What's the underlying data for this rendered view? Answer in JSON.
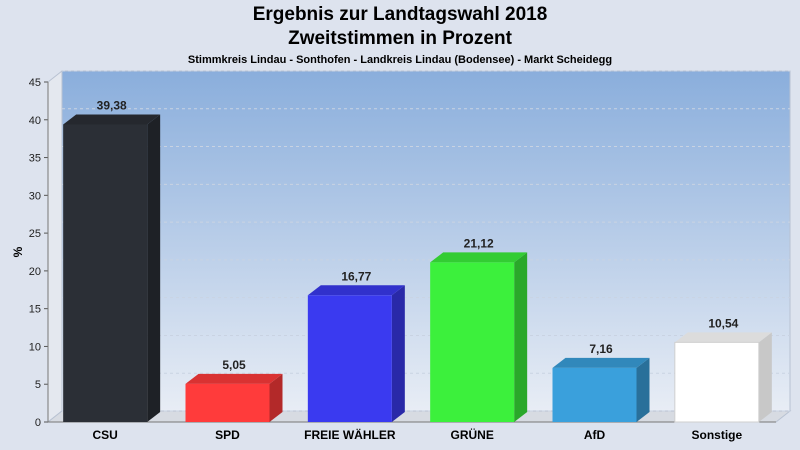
{
  "header": {
    "title": "Ergebnis zur Landtagswahl 2018",
    "subtitle": "Zweitstimmen in Prozent",
    "region": "Stimmkreis Lindau - Sonthofen - Landkreis Lindau (Bodensee) - Markt Scheidegg"
  },
  "chart_data": {
    "type": "bar",
    "title": "Ergebnis zur Landtagswahl 2018",
    "subtitle": "Zweitstimmen in Prozent",
    "xlabel": "",
    "ylabel": "%",
    "ylim": [
      0,
      45
    ],
    "yticks": [
      0,
      5,
      10,
      15,
      20,
      25,
      30,
      35,
      40,
      45
    ],
    "grid": true,
    "legend": "none",
    "categories": [
      "CSU",
      "SPD",
      "FREIE WÄHLER",
      "GRÜNE",
      "AfD",
      "Sonstige"
    ],
    "values": [
      39.38,
      5.05,
      16.77,
      21.12,
      7.16,
      10.54
    ],
    "value_labels": [
      "39,38",
      "5,05",
      "16,77",
      "21,12",
      "7,16",
      "10,54"
    ],
    "colors": [
      "#2b2f36",
      "#ff3b3b",
      "#3a3af0",
      "#3cf03c",
      "#3aa0dc",
      "#ffffff"
    ]
  }
}
